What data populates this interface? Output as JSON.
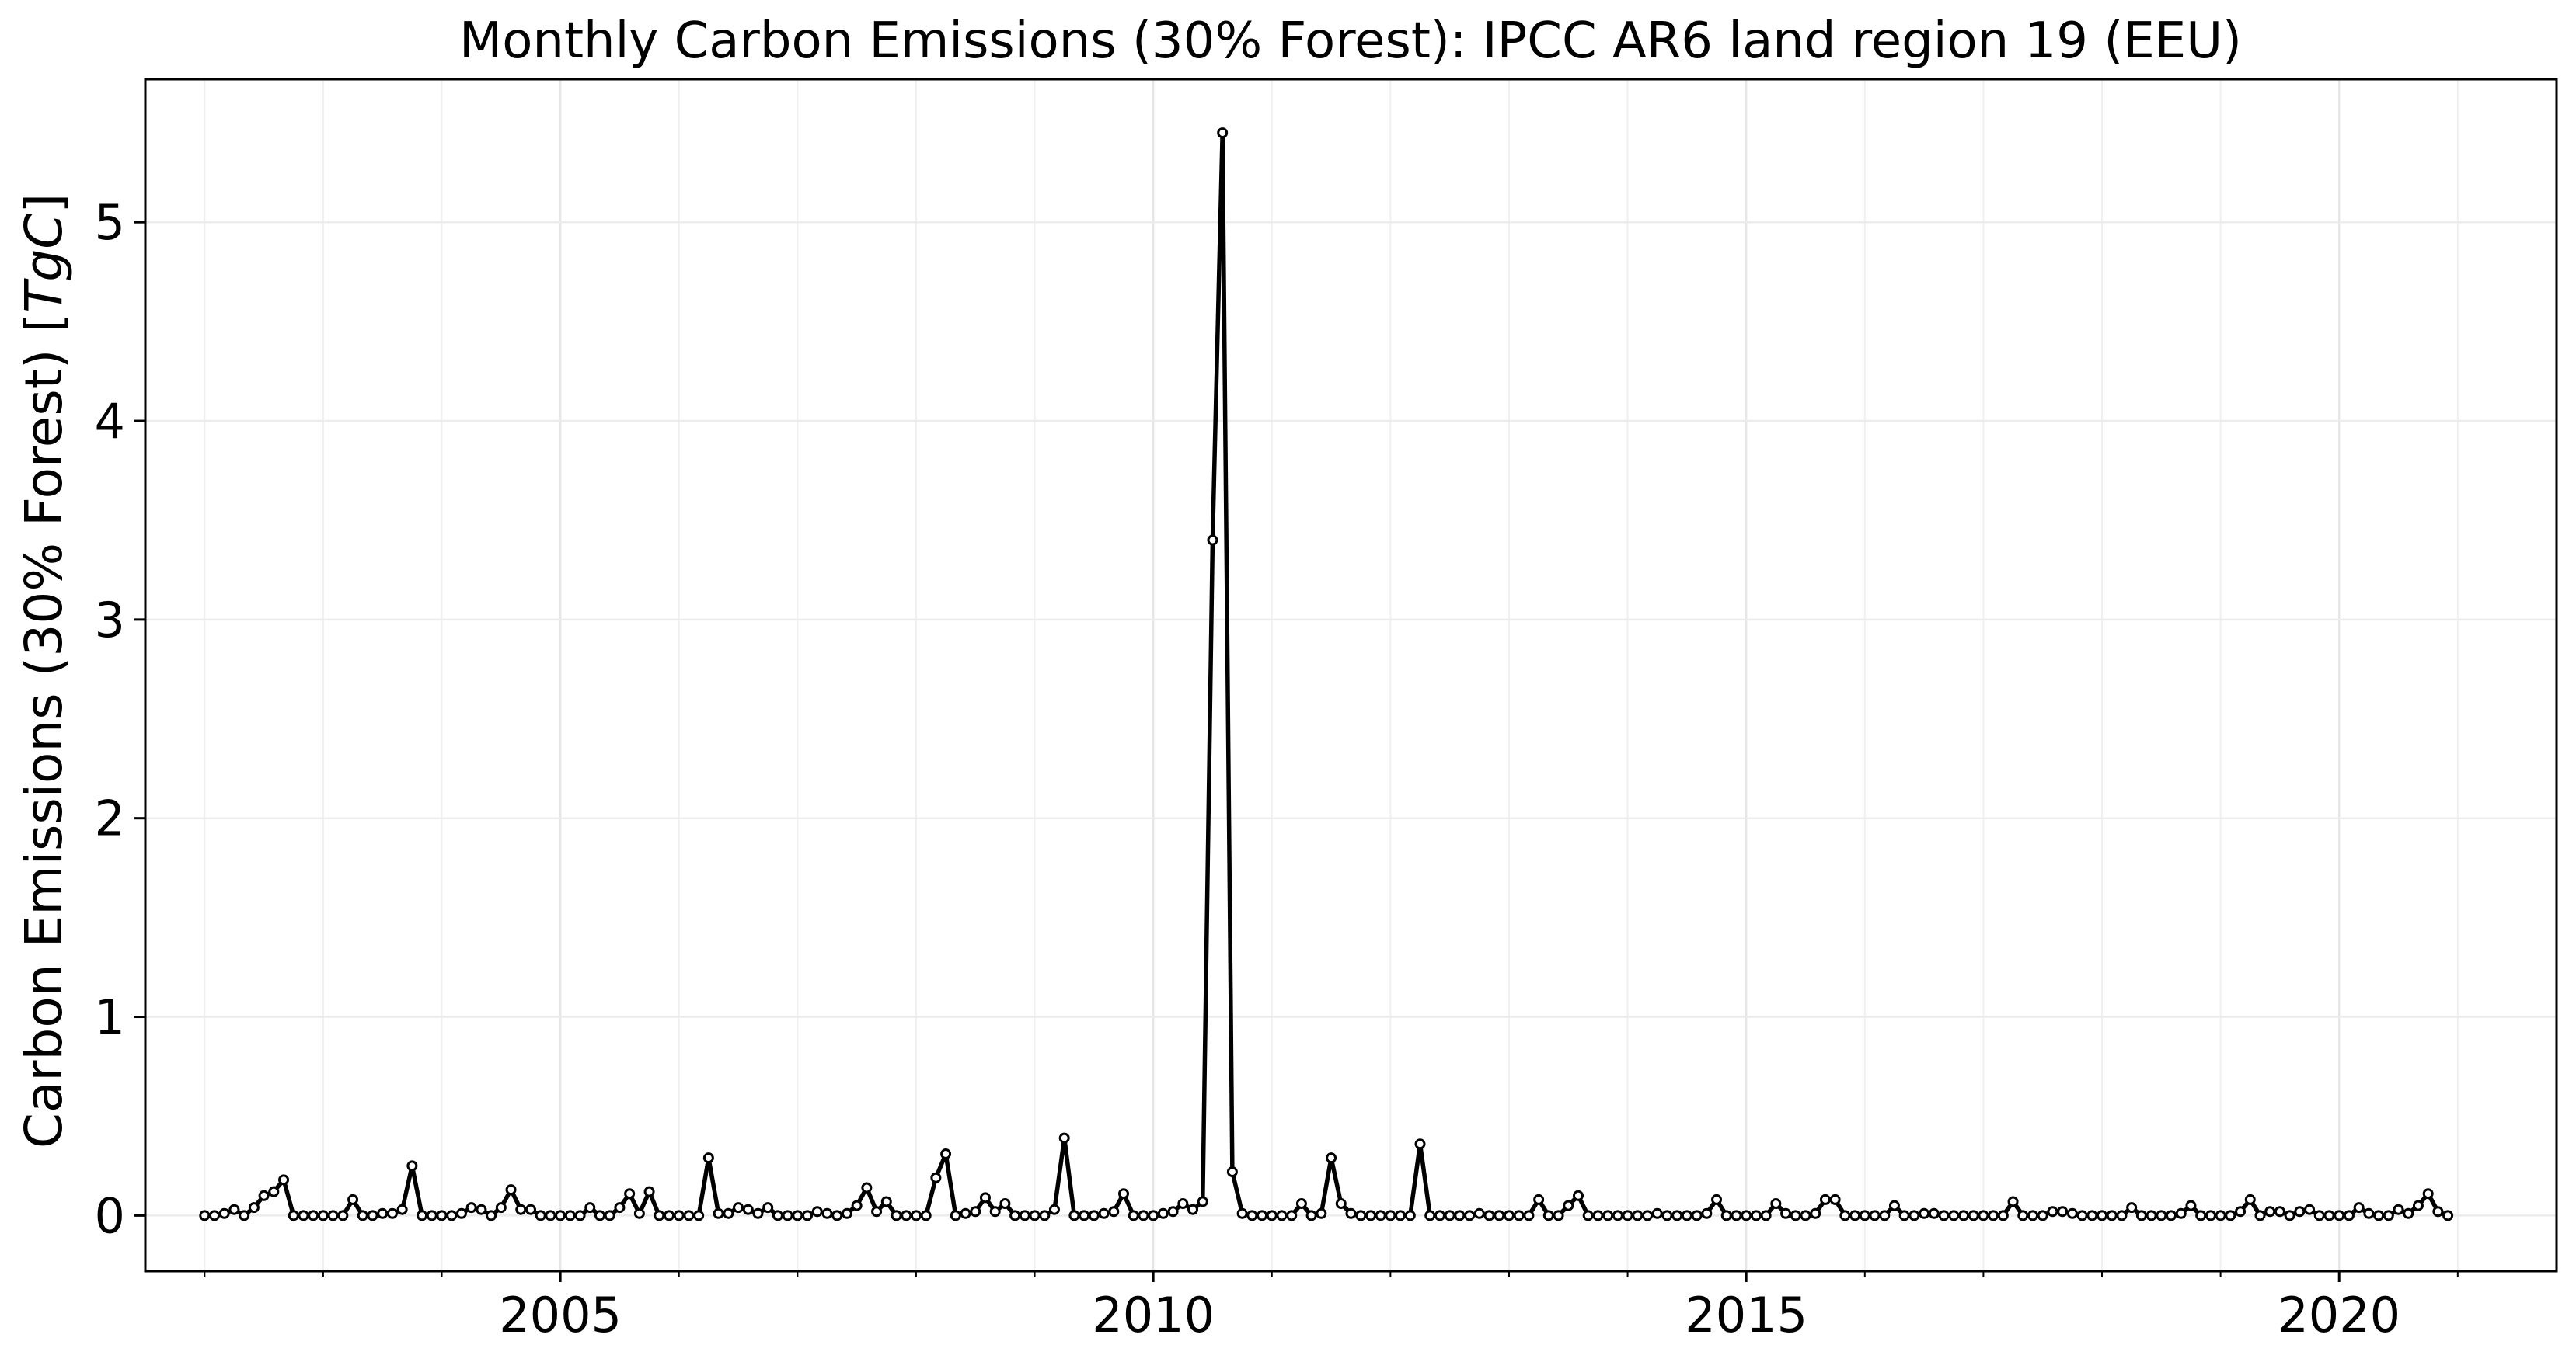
{
  "chart_data": {
    "type": "line",
    "title": "Monthly Carbon Emissions (30% Forest): IPCC AR6 land region 19 (EEU)",
    "xlabel": "",
    "ylabel": "Carbon Emissions (30% Forest) [TgC]",
    "ylabel_main": "Carbon Emissions (30% Forest) [",
    "ylabel_unit": "TgC",
    "ylabel_close": "]",
    "xlim": [
      "2001-07",
      "2021-11"
    ],
    "ylim": [
      -0.28,
      5.72
    ],
    "x_ticks": [
      2005,
      2010,
      2015,
      2020
    ],
    "x_tick_labels": [
      "2005",
      "2010",
      "2015",
      "2020"
    ],
    "y_ticks": [
      0,
      1,
      2,
      3,
      4,
      5
    ],
    "y_tick_labels": [
      "0",
      "1",
      "2",
      "3",
      "4",
      "5"
    ],
    "grid": true,
    "legend": "none",
    "series": [
      {
        "color": "#000000",
        "marker": "circle-open",
        "start": "2002-01",
        "values": [
          0.0,
          0.0,
          0.01,
          0.03,
          0.0,
          0.04,
          0.1,
          0.12,
          0.18,
          0.0,
          0.0,
          0.0,
          0.0,
          0.0,
          0.0,
          0.08,
          0.0,
          0.0,
          0.01,
          0.01,
          0.03,
          0.25,
          0.0,
          0.0,
          0.0,
          0.0,
          0.01,
          0.04,
          0.03,
          0.0,
          0.04,
          0.13,
          0.03,
          0.03,
          0.0,
          0.0,
          0.0,
          0.0,
          0.0,
          0.04,
          0.0,
          0.0,
          0.04,
          0.11,
          0.01,
          0.12,
          0.0,
          0.0,
          0.0,
          0.0,
          0.0,
          0.29,
          0.01,
          0.01,
          0.04,
          0.03,
          0.01,
          0.04,
          0.0,
          0.0,
          0.0,
          0.0,
          0.02,
          0.01,
          0.0,
          0.01,
          0.05,
          0.14,
          0.02,
          0.07,
          0.0,
          0.0,
          0.0,
          0.0,
          0.19,
          0.31,
          0.0,
          0.01,
          0.02,
          0.09,
          0.02,
          0.06,
          0.0,
          0.0,
          0.0,
          0.0,
          0.03,
          0.39,
          0.0,
          0.0,
          0.0,
          0.01,
          0.02,
          0.11,
          0.0,
          0.0,
          0.0,
          0.01,
          0.02,
          0.06,
          0.03,
          0.07,
          3.4,
          5.45,
          0.22,
          0.01,
          0.0,
          0.0,
          0.0,
          0.0,
          0.0,
          0.06,
          0.0,
          0.01,
          0.29,
          0.06,
          0.01,
          0.0,
          0.0,
          0.0,
          0.0,
          0.0,
          0.0,
          0.36,
          0.0,
          0.0,
          0.0,
          0.0,
          0.0,
          0.01,
          0.0,
          0.0,
          0.0,
          0.0,
          0.0,
          0.08,
          0.0,
          0.0,
          0.05,
          0.1,
          0.0,
          0.0,
          0.0,
          0.0,
          0.0,
          0.0,
          0.0,
          0.01,
          0.0,
          0.0,
          0.0,
          0.0,
          0.01,
          0.08,
          0.0,
          0.0,
          0.0,
          0.0,
          0.0,
          0.06,
          0.01,
          0.0,
          0.0,
          0.01,
          0.08,
          0.08,
          0.0,
          0.0,
          0.0,
          0.0,
          0.0,
          0.05,
          0.0,
          0.0,
          0.01,
          0.01,
          0.0,
          0.0,
          0.0,
          0.0,
          0.0,
          0.0,
          0.0,
          0.07,
          0.0,
          0.0,
          0.0,
          0.02,
          0.02,
          0.01,
          0.0,
          0.0,
          0.0,
          0.0,
          0.0,
          0.04,
          0.0,
          0.0,
          0.0,
          0.0,
          0.01,
          0.05,
          0.0,
          0.0,
          0.0,
          0.0,
          0.02,
          0.08,
          0.0,
          0.02,
          0.02,
          0.0,
          0.02,
          0.03,
          0.0,
          0.0,
          0.0,
          0.0,
          0.04,
          0.01,
          0.0,
          0.0,
          0.03,
          0.01,
          0.05,
          0.11,
          0.02,
          0.0
        ]
      }
    ]
  }
}
